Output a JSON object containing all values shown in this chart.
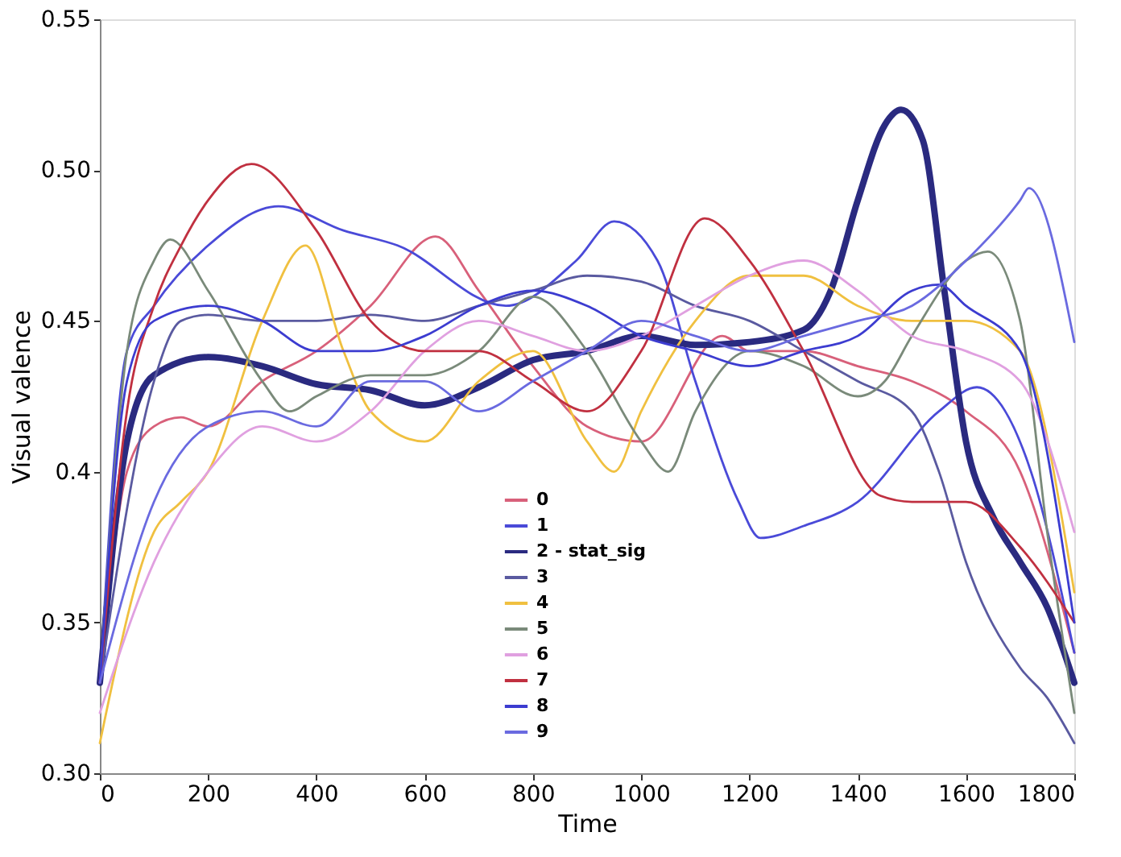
{
  "chart_data": {
    "type": "line",
    "xlabel": "Time",
    "ylabel": "Visual valence",
    "xlim": [
      0,
      1800
    ],
    "ylim": [
      0.3,
      0.55
    ],
    "xticks": [
      0,
      200,
      400,
      600,
      800,
      1000,
      1200,
      1400,
      1600,
      1800
    ],
    "yticks": [
      {
        "value": 0.3,
        "label": "0.30"
      },
      0.35,
      0.4,
      0.45,
      {
        "value": 0.5,
        "label": "0.50"
      },
      0.55
    ],
    "grid": false,
    "legend": "bottom",
    "marker": "none",
    "line_style": "solid",
    "series": [
      {
        "name": "0",
        "color": "#d8607a",
        "x": [
          0,
          50,
          100,
          150,
          200,
          300,
          400,
          500,
          620,
          700,
          800,
          900,
          1000,
          1150,
          1200,
          1300,
          1400,
          1500,
          1600,
          1700,
          1800
        ],
        "values": [
          0.33,
          0.4,
          0.415,
          0.418,
          0.415,
          0.43,
          0.44,
          0.455,
          0.478,
          0.46,
          0.435,
          0.415,
          0.41,
          0.445,
          0.44,
          0.44,
          0.435,
          0.43,
          0.42,
          0.4,
          0.34
        ]
      },
      {
        "name": "1",
        "color": "#4a4ad8",
        "x": [
          0,
          50,
          100,
          200,
          330,
          450,
          550,
          750,
          880,
          950,
          1030,
          1100,
          1180,
          1220,
          1300,
          1400,
          1550,
          1620,
          1720,
          1800
        ],
        "values": [
          0.33,
          0.44,
          0.455,
          0.475,
          0.488,
          0.48,
          0.475,
          0.455,
          0.47,
          0.483,
          0.47,
          0.43,
          0.39,
          0.378,
          0.382,
          0.39,
          0.42,
          0.428,
          0.4,
          0.34
        ]
      },
      {
        "name": "2 - stat_sig",
        "color": "#2a2a80",
        "x": [
          0,
          50,
          100,
          200,
          300,
          400,
          500,
          600,
          700,
          800,
          900,
          1000,
          1100,
          1200,
          1300,
          1350,
          1400,
          1450,
          1480,
          1520,
          1560,
          1600,
          1650,
          1700,
          1750,
          1800
        ],
        "values": [
          0.33,
          0.41,
          0.432,
          0.438,
          0.435,
          0.429,
          0.427,
          0.422,
          0.428,
          0.437,
          0.44,
          0.445,
          0.442,
          0.443,
          0.447,
          0.46,
          0.49,
          0.515,
          0.52,
          0.51,
          0.46,
          0.41,
          0.385,
          0.37,
          0.355,
          0.33
        ]
      },
      {
        "name": "3",
        "color": "#5a5aa0",
        "x": [
          0,
          100,
          150,
          200,
          300,
          400,
          500,
          600,
          700,
          800,
          900,
          1000,
          1100,
          1200,
          1300,
          1400,
          1500,
          1550,
          1600,
          1700,
          1750,
          1800
        ],
        "values": [
          0.33,
          0.43,
          0.45,
          0.452,
          0.45,
          0.45,
          0.452,
          0.45,
          0.455,
          0.46,
          0.465,
          0.463,
          0.455,
          0.45,
          0.44,
          0.43,
          0.42,
          0.4,
          0.37,
          0.335,
          0.325,
          0.31
        ]
      },
      {
        "name": "4",
        "color": "#f0c040",
        "x": [
          0,
          100,
          150,
          200,
          300,
          380,
          450,
          500,
          600,
          700,
          800,
          900,
          950,
          1000,
          1100,
          1200,
          1300,
          1400,
          1500,
          1600,
          1700,
          1800
        ],
        "values": [
          0.31,
          0.38,
          0.39,
          0.4,
          0.45,
          0.475,
          0.44,
          0.42,
          0.41,
          0.43,
          0.44,
          0.41,
          0.4,
          0.42,
          0.45,
          0.465,
          0.465,
          0.455,
          0.45,
          0.45,
          0.44,
          0.36
        ]
      },
      {
        "name": "5",
        "color": "#7a8a7a",
        "x": [
          0,
          50,
          100,
          130,
          200,
          300,
          350,
          400,
          500,
          600,
          700,
          800,
          900,
          1000,
          1050,
          1100,
          1200,
          1300,
          1400,
          1450,
          1500,
          1600,
          1640,
          1700,
          1750,
          1800
        ],
        "values": [
          0.33,
          0.44,
          0.47,
          0.477,
          0.46,
          0.43,
          0.42,
          0.425,
          0.432,
          0.432,
          0.44,
          0.458,
          0.44,
          0.41,
          0.4,
          0.42,
          0.44,
          0.435,
          0.425,
          0.43,
          0.445,
          0.47,
          0.473,
          0.45,
          0.38,
          0.32
        ]
      },
      {
        "name": "6",
        "color": "#e0a0e0",
        "x": [
          0,
          100,
          200,
          300,
          400,
          500,
          600,
          700,
          800,
          900,
          1000,
          1100,
          1200,
          1300,
          1400,
          1500,
          1600,
          1700,
          1800
        ],
        "values": [
          0.32,
          0.37,
          0.4,
          0.415,
          0.41,
          0.42,
          0.44,
          0.45,
          0.445,
          0.44,
          0.445,
          0.455,
          0.465,
          0.47,
          0.46,
          0.445,
          0.44,
          0.43,
          0.38
        ]
      },
      {
        "name": "7",
        "color": "#c03040",
        "x": [
          0,
          50,
          100,
          150,
          200,
          280,
          400,
          500,
          600,
          700,
          800,
          900,
          1000,
          1117,
          1200,
          1300,
          1442,
          1500,
          1600,
          1700,
          1800
        ],
        "values": [
          0.33,
          0.42,
          0.455,
          0.475,
          0.49,
          0.502,
          0.48,
          0.45,
          0.44,
          0.44,
          0.43,
          0.42,
          0.44,
          0.484,
          0.47,
          0.44,
          0.392,
          0.39,
          0.39,
          0.375,
          0.35
        ]
      },
      {
        "name": "8",
        "color": "#3c3cd0",
        "x": [
          0,
          50,
          100,
          200,
          300,
          400,
          500,
          600,
          700,
          800,
          900,
          1000,
          1100,
          1200,
          1300,
          1400,
          1500,
          1550,
          1600,
          1700,
          1800
        ],
        "values": [
          0.33,
          0.43,
          0.45,
          0.455,
          0.45,
          0.44,
          0.44,
          0.445,
          0.455,
          0.46,
          0.455,
          0.445,
          0.44,
          0.435,
          0.44,
          0.445,
          0.46,
          0.462,
          0.455,
          0.44,
          0.35
        ]
      },
      {
        "name": "9",
        "color": "#6a6ae0",
        "x": [
          0,
          100,
          200,
          300,
          400,
          500,
          600,
          700,
          800,
          900,
          1000,
          1100,
          1200,
          1300,
          1400,
          1500,
          1600,
          1700,
          1716,
          1800
        ],
        "values": [
          0.33,
          0.39,
          0.415,
          0.42,
          0.415,
          0.43,
          0.43,
          0.42,
          0.43,
          0.44,
          0.45,
          0.445,
          0.44,
          0.445,
          0.45,
          0.455,
          0.47,
          0.49,
          0.494,
          0.443
        ]
      }
    ]
  }
}
